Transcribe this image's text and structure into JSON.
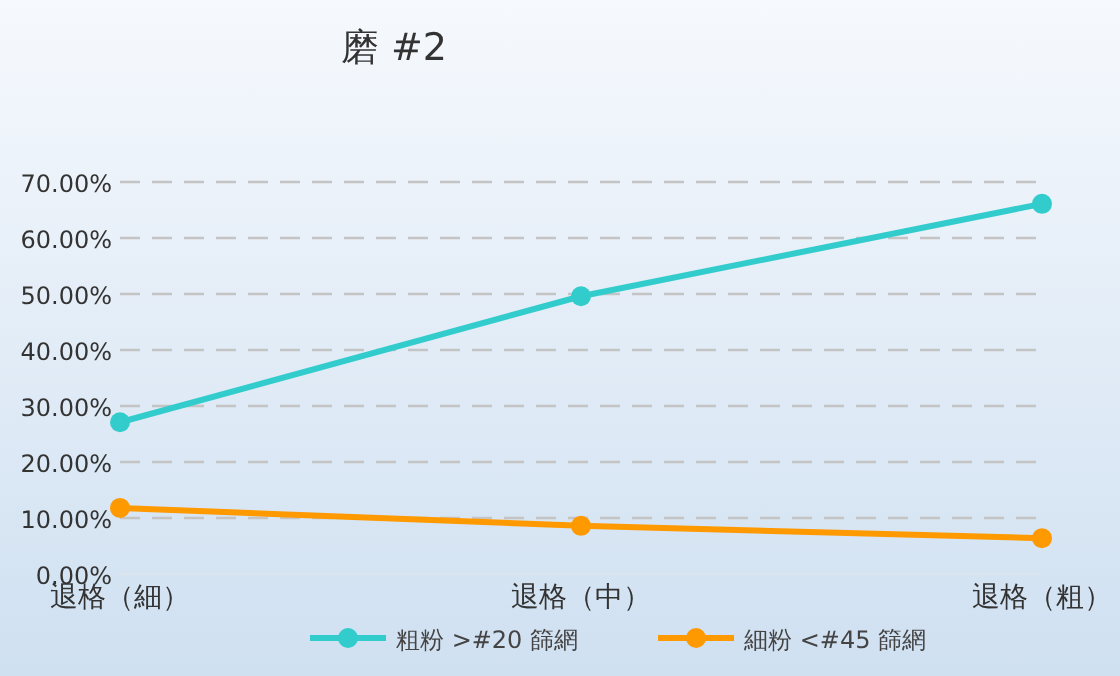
{
  "chart_data": {
    "type": "line",
    "title": "磨 #2",
    "categories": [
      "退格（細）",
      "退格（中）",
      "退格（粗）"
    ],
    "series": [
      {
        "name": "粗粉 >#20 篩網",
        "color": "#33cccc",
        "values": [
          27.1,
          49.6,
          66.1
        ]
      },
      {
        "name": "細粉 <#45 篩網",
        "color": "#ff9900",
        "values": [
          11.8,
          8.6,
          6.4
        ]
      }
    ],
    "ylim": [
      0,
      70
    ],
    "yticks": [
      {
        "value": 0,
        "label": "0.00%"
      },
      {
        "value": 10,
        "label": "10.00%"
      },
      {
        "value": 20,
        "label": "20.00%"
      },
      {
        "value": 30,
        "label": "30.00%"
      },
      {
        "value": 40,
        "label": "40.00%"
      },
      {
        "value": 50,
        "label": "50.00%"
      },
      {
        "value": 60,
        "label": "60.00%"
      },
      {
        "value": 70,
        "label": "70.00%"
      }
    ],
    "grid": "y",
    "legend": "bottom",
    "marker": "circle",
    "line_style": "solid"
  }
}
